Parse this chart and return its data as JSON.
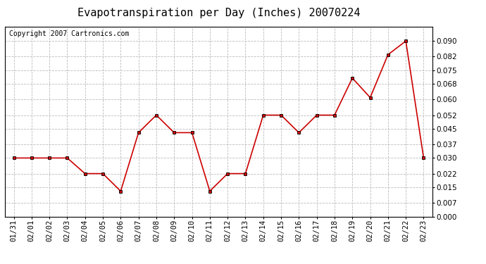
{
  "title": "Evapotranspiration per Day (Inches) 20070224",
  "copyright_text": "Copyright 2007 Cartronics.com",
  "dates": [
    "01/31",
    "02/01",
    "02/02",
    "02/03",
    "02/04",
    "02/05",
    "02/06",
    "02/07",
    "02/08",
    "02/09",
    "02/10",
    "02/11",
    "02/12",
    "02/13",
    "02/14",
    "02/15",
    "02/16",
    "02/17",
    "02/18",
    "02/19",
    "02/20",
    "02/21",
    "02/22",
    "02/23"
  ],
  "values": [
    0.03,
    0.03,
    0.03,
    0.03,
    0.022,
    0.022,
    0.013,
    0.043,
    0.052,
    0.043,
    0.043,
    0.013,
    0.022,
    0.022,
    0.052,
    0.052,
    0.043,
    0.052,
    0.052,
    0.071,
    0.061,
    0.083,
    0.09,
    0.03
  ],
  "line_color": "#cc0000",
  "marker": "s",
  "marker_size": 3,
  "bg_color": "#ffffff",
  "plot_bg_color": "#ffffff",
  "grid_color": "#bbbbbb",
  "ylim": [
    0.0,
    0.0975
  ],
  "yticks": [
    0.0,
    0.007,
    0.015,
    0.022,
    0.03,
    0.037,
    0.045,
    0.052,
    0.06,
    0.068,
    0.075,
    0.082,
    0.09
  ],
  "title_fontsize": 11,
  "copyright_fontsize": 7,
  "tick_fontsize": 7.5
}
